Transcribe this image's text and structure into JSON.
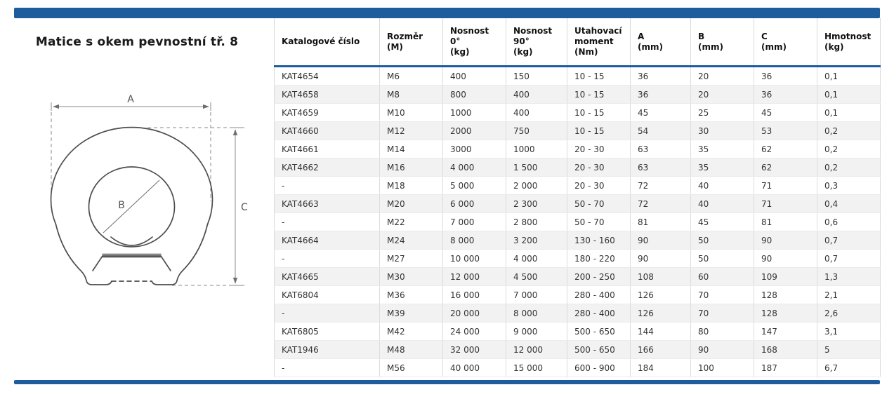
{
  "page": {
    "title": "Matice s okem pevnostní tř. 8"
  },
  "colors": {
    "accent_blue": "#1f5c9e",
    "alt_row": "#f2f2f2"
  },
  "drawing": {
    "labels": {
      "a": "A",
      "b": "B",
      "c": "C"
    }
  },
  "table": {
    "headers": [
      "Katalogové číslo",
      "Rozměr\n(M)",
      "Nosnost\n0°\n(kg)",
      "Nosnost\n90°\n(kg)",
      "Utahovací\nmoment\n(Nm)",
      "A\n(mm)",
      "B\n(mm)",
      "C\n(mm)",
      "Hmotnost\n(kg)"
    ],
    "rows": [
      [
        "KAT4654",
        "M6",
        "400",
        "150",
        "10 - 15",
        "36",
        "20",
        "36",
        "0,1"
      ],
      [
        "KAT4658",
        "M8",
        "800",
        "400",
        "10 - 15",
        "36",
        "20",
        "36",
        "0,1"
      ],
      [
        "KAT4659",
        "M10",
        "1000",
        "400",
        "10 - 15",
        "45",
        "25",
        "45",
        "0,1"
      ],
      [
        "KAT4660",
        "M12",
        "2000",
        "750",
        "10 - 15",
        "54",
        "30",
        "53",
        "0,2"
      ],
      [
        "KAT4661",
        "M14",
        "3000",
        "1000",
        "20 - 30",
        "63",
        "35",
        "62",
        "0,2"
      ],
      [
        "KAT4662",
        "M16",
        "4 000",
        "1 500",
        "20 - 30",
        "63",
        "35",
        "62",
        "0,2"
      ],
      [
        "-",
        "M18",
        "5 000",
        "2 000",
        "20 - 30",
        "72",
        "40",
        "71",
        "0,3"
      ],
      [
        "KAT4663",
        "M20",
        "6 000",
        "2 300",
        "50 - 70",
        "72",
        "40",
        "71",
        "0,4"
      ],
      [
        "-",
        "M22",
        "7 000",
        "2 800",
        "50 - 70",
        "81",
        "45",
        "81",
        "0,6"
      ],
      [
        "KAT4664",
        "M24",
        "8 000",
        "3 200",
        "130 - 160",
        "90",
        "50",
        "90",
        "0,7"
      ],
      [
        "-",
        "M27",
        "10 000",
        "4 000",
        "180 - 220",
        "90",
        "50",
        "90",
        "0,7"
      ],
      [
        "KAT4665",
        "M30",
        "12 000",
        "4 500",
        "200 - 250",
        "108",
        "60",
        "109",
        "1,3"
      ],
      [
        "KAT6804",
        "M36",
        "16 000",
        "7 000",
        "280 - 400",
        "126",
        "70",
        "128",
        "2,1"
      ],
      [
        "-",
        "M39",
        "20 000",
        "8 000",
        "280 - 400",
        "126",
        "70",
        "128",
        "2,6"
      ],
      [
        "KAT6805",
        "M42",
        "24 000",
        "9 000",
        "500 - 650",
        "144",
        "80",
        "147",
        "3,1"
      ],
      [
        "KAT1946",
        "M48",
        "32 000",
        "12 000",
        "500 - 650",
        "166",
        "90",
        "168",
        "5"
      ],
      [
        "-",
        "M56",
        "40 000",
        "15 000",
        "600 - 900",
        "184",
        "100",
        "187",
        "6,7"
      ]
    ]
  }
}
